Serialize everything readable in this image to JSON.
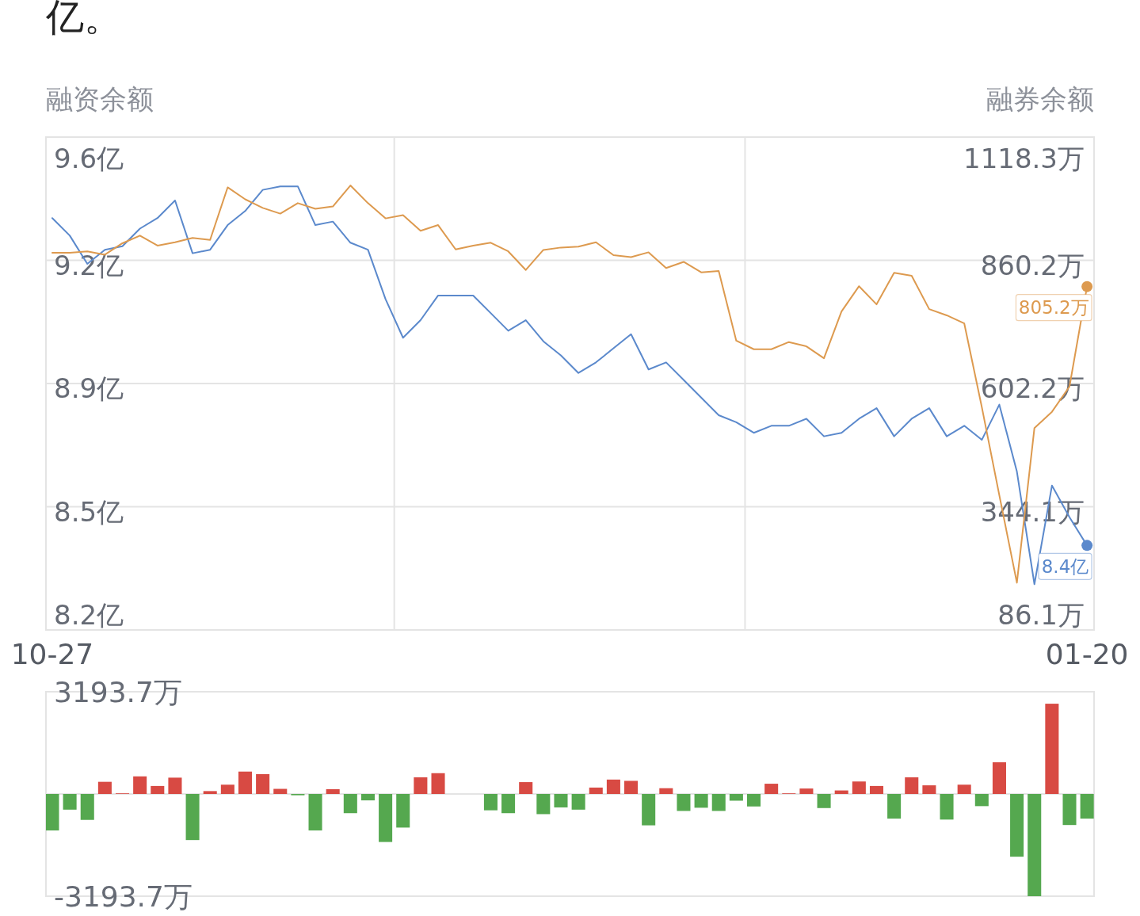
{
  "chart_data": [
    {
      "type": "line",
      "ylabel": "融资余额",
      "y2label": "融券余额",
      "annotations": [
        "亿。"
      ],
      "categories": [
        "10-27",
        null,
        null,
        null,
        null,
        null,
        null,
        null,
        null,
        null,
        null,
        null,
        null,
        null,
        null,
        null,
        null,
        null,
        null,
        null,
        null,
        null,
        null,
        null,
        null,
        null,
        null,
        null,
        null,
        null,
        null,
        null,
        null,
        null,
        null,
        null,
        null,
        null,
        null,
        null,
        null,
        null,
        null,
        null,
        null,
        null,
        null,
        null,
        null,
        null,
        null,
        null,
        null,
        null,
        null,
        null,
        null,
        null,
        null,
        "01-20"
      ],
      "ylim": [
        8.2,
        9.6
      ],
      "yticks": [
        {
          "value": 9.6,
          "label": "9.6亿"
        },
        {
          "value": 9.25,
          "label": "9.2亿"
        },
        {
          "value": 8.9,
          "label": "8.9亿"
        },
        {
          "value": 8.55,
          "label": "8.5亿"
        },
        {
          "value": 8.2,
          "label": "8.2亿"
        }
      ],
      "y2lim": [
        86.1,
        1118.3
      ],
      "y2ticks": [
        {
          "value": 1118.3,
          "label": "1118.3万"
        },
        {
          "value": 860.25,
          "label": "860.2万"
        },
        {
          "value": 602.2,
          "label": "602.2万"
        },
        {
          "value": 344.15,
          "label": "344.1万"
        },
        {
          "value": 86.1,
          "label": "86.1万"
        }
      ],
      "grid": "y",
      "series": [
        {
          "color": "#5b89cc",
          "values": [
            9.37,
            9.32,
            9.24,
            9.28,
            9.29,
            9.34,
            9.37,
            9.42,
            9.27,
            9.28,
            9.35,
            9.39,
            9.45,
            9.46,
            9.46,
            9.35,
            9.36,
            9.3,
            9.28,
            9.14,
            9.03,
            9.08,
            9.15,
            9.15,
            9.15,
            9.1,
            9.05,
            9.08,
            9.02,
            8.98,
            8.93,
            8.96,
            9.0,
            9.04,
            8.94,
            8.96,
            8.91,
            8.86,
            8.81,
            8.79,
            8.76,
            8.78,
            8.78,
            8.8,
            8.75,
            8.76,
            8.8,
            8.83,
            8.75,
            8.8,
            8.83,
            8.75,
            8.78,
            8.74,
            8.84,
            8.65,
            8.33,
            8.61,
            8.52,
            8.44
          ],
          "value_labels": [
            null,
            null,
            null,
            null,
            null,
            null,
            null,
            null,
            null,
            null,
            null,
            null,
            null,
            null,
            null,
            null,
            null,
            null,
            null,
            null,
            null,
            null,
            null,
            null,
            null,
            null,
            null,
            null,
            null,
            null,
            null,
            null,
            null,
            null,
            null,
            null,
            null,
            null,
            null,
            null,
            null,
            null,
            null,
            null,
            null,
            null,
            null,
            null,
            null,
            null,
            null,
            null,
            null,
            null,
            null,
            null,
            null,
            null,
            null,
            "8.4亿"
          ]
        },
        {
          "color": "#dd9a4f",
          "axis": "y2",
          "values": [
            876,
            876,
            879,
            872,
            896,
            912,
            891,
            898,
            907,
            903,
            1013,
            988,
            970,
            958,
            980,
            968,
            973,
            1017,
            980,
            948,
            955,
            922,
            934,
            883,
            891,
            897,
            879,
            840,
            882,
            887,
            889,
            898,
            871,
            867,
            877,
            844,
            857,
            835,
            838,
            692,
            674,
            674,
            689,
            680,
            655,
            753,
            806,
            768,
            834,
            828,
            758,
            745,
            728,
            553,
            368,
            185,
            509,
            543,
            596,
            805.2
          ],
          "value_labels": [
            null,
            null,
            null,
            null,
            null,
            null,
            null,
            null,
            null,
            null,
            null,
            null,
            null,
            null,
            null,
            null,
            null,
            null,
            null,
            null,
            null,
            null,
            null,
            null,
            null,
            null,
            null,
            null,
            null,
            null,
            null,
            null,
            null,
            null,
            null,
            null,
            null,
            null,
            null,
            null,
            null,
            null,
            null,
            null,
            null,
            null,
            null,
            null,
            null,
            null,
            null,
            null,
            null,
            null,
            null,
            null,
            null,
            null,
            null,
            "805.2万"
          ]
        }
      ]
    },
    {
      "type": "bar",
      "categories": [
        null,
        null,
        null,
        null,
        null,
        null,
        null,
        null,
        null,
        null,
        null,
        null,
        null,
        null,
        null,
        null,
        null,
        null,
        null,
        null,
        null,
        null,
        null,
        null,
        null,
        null,
        null,
        null,
        null,
        null,
        null,
        null,
        null,
        null,
        null,
        null,
        null,
        null,
        null,
        null,
        null,
        null,
        null,
        null,
        null,
        null,
        null,
        null,
        null,
        null,
        null,
        null,
        null,
        null,
        null,
        null,
        null,
        null,
        null,
        null
      ],
      "ylim": [
        -3193.7,
        3193.7
      ],
      "yticks": [
        {
          "value": 3193.7,
          "label": "3193.7万"
        },
        {
          "value": -3193.7,
          "label": "-3193.7万"
        }
      ],
      "tick_labels": "y",
      "values": [
        -1140,
        -490,
        -810,
        380,
        20,
        550,
        250,
        510,
        -1440,
        90,
        290,
        700,
        620,
        160,
        -40,
        -1140,
        150,
        -600,
        -200,
        -1500,
        -1050,
        520,
        650,
        null,
        null,
        -510,
        -600,
        370,
        -630,
        -420,
        -490,
        200,
        450,
        410,
        -980,
        180,
        -530,
        -430,
        -530,
        -210,
        -390,
        320,
        20,
        170,
        -440,
        110,
        390,
        250,
        -770,
        520,
        270,
        -800,
        290,
        -380,
        990,
        -1960,
        -3193.7,
        2820,
        -970,
        -770
      ],
      "colors": [
        "#55a84f",
        "#55a84f",
        "#55a84f",
        "#d84a43",
        "#d84a43",
        "#d84a43",
        "#d84a43",
        "#d84a43",
        "#55a84f",
        "#d84a43",
        "#d84a43",
        "#d84a43",
        "#d84a43",
        "#d84a43",
        "#55a84f",
        "#55a84f",
        "#d84a43",
        "#55a84f",
        "#55a84f",
        "#55a84f",
        "#55a84f",
        "#d84a43",
        "#d84a43",
        null,
        null,
        "#55a84f",
        "#55a84f",
        "#d84a43",
        "#55a84f",
        "#55a84f",
        "#55a84f",
        "#d84a43",
        "#d84a43",
        "#d84a43",
        "#55a84f",
        "#d84a43",
        "#55a84f",
        "#55a84f",
        "#55a84f",
        "#55a84f",
        "#55a84f",
        "#d84a43",
        "#d84a43",
        "#d84a43",
        "#55a84f",
        "#d84a43",
        "#d84a43",
        "#d84a43",
        "#55a84f",
        "#d84a43",
        "#d84a43",
        "#55a84f",
        "#d84a43",
        "#55a84f",
        "#d84a43",
        "#55a84f",
        "#55a84f",
        "#d84a43",
        "#55a84f",
        "#55a84f"
      ]
    }
  ]
}
